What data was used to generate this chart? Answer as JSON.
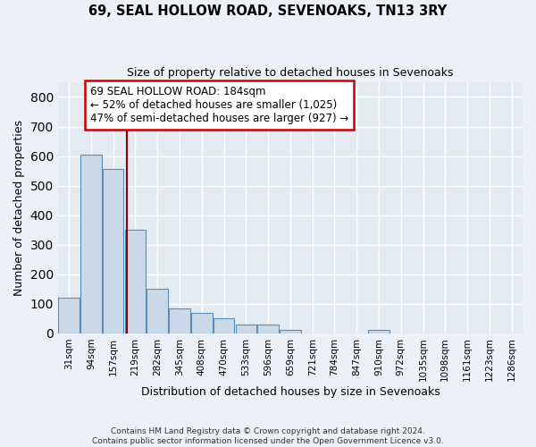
{
  "title1": "69, SEAL HOLLOW ROAD, SEVENOAKS, TN13 3RY",
  "title2": "Size of property relative to detached houses in Sevenoaks",
  "xlabel": "Distribution of detached houses by size in Sevenoaks",
  "ylabel": "Number of detached properties",
  "footnote1": "Contains HM Land Registry data © Crown copyright and database right 2024.",
  "footnote2": "Contains public sector information licensed under the Open Government Licence v3.0.",
  "bar_labels": [
    "31sqm",
    "94sqm",
    "157sqm",
    "219sqm",
    "282sqm",
    "345sqm",
    "408sqm",
    "470sqm",
    "533sqm",
    "596sqm",
    "659sqm",
    "721sqm",
    "784sqm",
    "847sqm",
    "910sqm",
    "972sqm",
    "1035sqm",
    "1098sqm",
    "1161sqm",
    "1223sqm",
    "1286sqm"
  ],
  "bar_heights": [
    120,
    605,
    555,
    350,
    150,
    85,
    70,
    50,
    30,
    30,
    12,
    0,
    0,
    0,
    12,
    0,
    0,
    0,
    0,
    0,
    0
  ],
  "bar_color": "#c9d9e8",
  "bar_edge_color": "#5b8db8",
  "vline_x": 2.62,
  "vline_color": "#8b0000",
  "ylim": [
    0,
    850
  ],
  "yticks": [
    0,
    100,
    200,
    300,
    400,
    500,
    600,
    700,
    800
  ],
  "annotation_line1": "69 SEAL HOLLOW ROAD: 184sqm",
  "annotation_line2": "← 52% of detached houses are smaller (1,025)",
  "annotation_line3": "47% of semi-detached houses are larger (927) →",
  "box_color": "white",
  "box_edge_color": "#cc0000",
  "bg_color": "#edf1f7",
  "plot_bg_color": "#e4eaf2",
  "grid_color": "white"
}
